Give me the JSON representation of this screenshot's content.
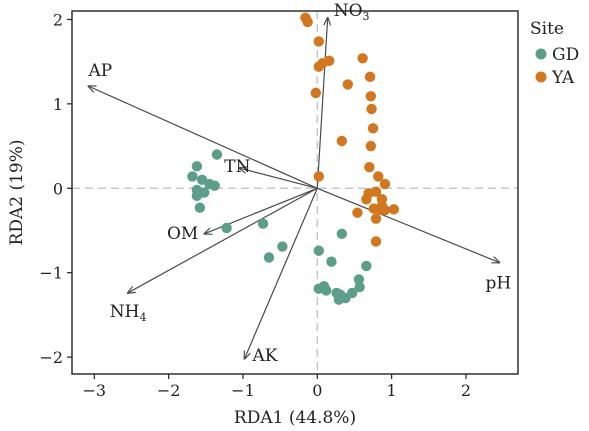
{
  "chart_data": {
    "type": "scatter",
    "title": "",
    "xlabel": "RDA1 (44.8%)",
    "ylabel": "RDA2 (19%)",
    "xlim": [
      -3.3,
      2.7
    ],
    "ylim": [
      -2.2,
      2.1
    ],
    "xticks": [
      -3,
      -2,
      -1,
      0,
      1,
      2
    ],
    "yticks": [
      -2,
      -1,
      0,
      1,
      2
    ],
    "zero_lines": true,
    "grid": false,
    "legend": {
      "title": "Site",
      "position": "right-top"
    },
    "series": [
      {
        "name": "GD",
        "color": "#5c9e8a",
        "points": [
          [
            -1.35,
            0.4
          ],
          [
            -1.62,
            0.26
          ],
          [
            -1.68,
            0.14
          ],
          [
            -1.55,
            0.1
          ],
          [
            -1.45,
            0.05
          ],
          [
            -1.38,
            0.03
          ],
          [
            -1.52,
            -0.05
          ],
          [
            -1.62,
            -0.02
          ],
          [
            -1.62,
            -0.09
          ],
          [
            -1.58,
            -0.23
          ],
          [
            -1.22,
            -0.47
          ],
          [
            -0.73,
            -0.42
          ],
          [
            -0.47,
            -0.69
          ],
          [
            -0.65,
            -0.82
          ],
          [
            0.02,
            -0.74
          ],
          [
            0.19,
            -0.87
          ],
          [
            0.33,
            -0.54
          ],
          [
            0.66,
            -0.92
          ],
          [
            0.56,
            -1.08
          ],
          [
            0.09,
            -1.16
          ],
          [
            0.02,
            -1.19
          ],
          [
            0.12,
            -1.21
          ],
          [
            0.26,
            -1.24
          ],
          [
            0.31,
            -1.26
          ],
          [
            0.38,
            -1.3
          ],
          [
            0.29,
            -1.32
          ],
          [
            0.47,
            -1.24
          ],
          [
            0.57,
            -1.17
          ]
        ]
      },
      {
        "name": "YA",
        "color": "#d2761f",
        "points": [
          [
            -0.16,
            2.02
          ],
          [
            -0.13,
            1.97
          ],
          [
            0.02,
            1.74
          ],
          [
            0.07,
            1.48
          ],
          [
            0.02,
            1.44
          ],
          [
            0.16,
            1.51
          ],
          [
            -0.02,
            1.13
          ],
          [
            0.61,
            1.54
          ],
          [
            0.71,
            1.32
          ],
          [
            0.41,
            1.23
          ],
          [
            0.72,
            1.09
          ],
          [
            0.73,
            0.94
          ],
          [
            0.75,
            0.71
          ],
          [
            0.33,
            0.56
          ],
          [
            0.72,
            0.5
          ],
          [
            0.7,
            0.25
          ],
          [
            0.82,
            0.14
          ],
          [
            0.91,
            0.05
          ],
          [
            0.79,
            -0.04
          ],
          [
            0.69,
            -0.06
          ],
          [
            0.66,
            -0.13
          ],
          [
            0.87,
            -0.13
          ],
          [
            0.87,
            -0.21
          ],
          [
            0.76,
            -0.24
          ],
          [
            0.84,
            -0.25
          ],
          [
            0.91,
            -0.26
          ],
          [
            1.03,
            -0.25
          ],
          [
            0.54,
            -0.29
          ],
          [
            0.79,
            -0.36
          ],
          [
            0.79,
            -0.63
          ],
          [
            0.02,
            0.14
          ]
        ]
      }
    ],
    "vectors": [
      {
        "label_main": "NO",
        "label_sub": "3",
        "x": 0.14,
        "y": 2.02,
        "label_pos": "above-right"
      },
      {
        "label_main": "AP",
        "label_sub": "",
        "x": -3.08,
        "y": 1.21,
        "label_pos": "above-left"
      },
      {
        "label_main": "TN",
        "label_sub": "",
        "x": -1.05,
        "y": 0.24,
        "label_pos": "below-left"
      },
      {
        "label_main": "OM",
        "label_sub": "",
        "x": -1.52,
        "y": -0.54,
        "label_pos": "left"
      },
      {
        "label_main": "NH",
        "label_sub": "4",
        "x": -2.55,
        "y": -1.24,
        "label_pos": "below-left"
      },
      {
        "label_main": "AK",
        "label_sub": "",
        "x": -0.98,
        "y": -2.02,
        "label_pos": "right"
      },
      {
        "label_main": "pH",
        "label_sub": "",
        "x": 2.45,
        "y": -0.88,
        "label_pos": "below"
      }
    ],
    "arrow_color": "#4a4a4a",
    "zero_line_color": "#c8c8c8"
  }
}
